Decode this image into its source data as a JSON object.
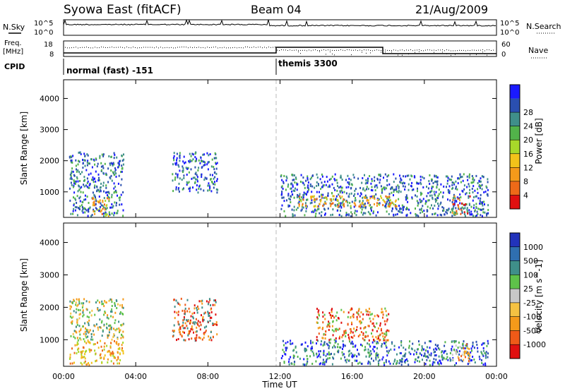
{
  "header": {
    "station": "Syowa East (fitACF)",
    "beam": "Beam 04",
    "date": "21/Aug/2009"
  },
  "status_panel": {
    "left_labels": {
      "nsky": "N.Sky",
      "freq": "Freq.",
      "freq_unit": "[MHz]",
      "cpid": "CPID"
    },
    "right_labels": {
      "nsearch": "N.Search",
      "nave": "Nave"
    },
    "nsky_ticks": [
      "10^5",
      "10^0"
    ],
    "freq_ticks": [
      "18",
      "8"
    ],
    "nsearch_ticks": [
      "10^5",
      "10^0"
    ],
    "nave_ticks": [
      "60",
      "0"
    ],
    "cpid_segments": [
      {
        "label": "normal (fast) -151",
        "start_hour": 0,
        "end_hour": 12
      },
      {
        "label": "themis 3300",
        "start_hour": 12,
        "end_hour": 24
      }
    ]
  },
  "chart_data": [
    {
      "type": "heatmap",
      "name": "power",
      "xlabel": "",
      "ylabel": "Slant Range [km]",
      "xlim": [
        0,
        24
      ],
      "ylim": [
        180,
        4600
      ],
      "yticks": [
        1000,
        2000,
        3000,
        4000
      ],
      "colorbar": {
        "label": "Power [dB]",
        "ticks": [
          "4",
          "8",
          "12",
          "16",
          "20",
          "24",
          "28"
        ],
        "colors": [
          "#1a1aff",
          "#2a4fb0",
          "#3f8f8a",
          "#52b34a",
          "#a8d82a",
          "#f2c21a",
          "#f59a1a",
          "#ee6a18",
          "#e01010"
        ]
      },
      "regions": [
        {
          "x": [
            0.3,
            3.3
          ],
          "y": [
            250,
            2300
          ],
          "dominant": "blue-green"
        },
        {
          "x": [
            1.5,
            2.5
          ],
          "y": [
            250,
            900
          ],
          "dominant": "orange-yellow"
        },
        {
          "x": [
            6.0,
            8.5
          ],
          "y": [
            1000,
            2300
          ],
          "dominant": "green-blue"
        },
        {
          "x": [
            12.0,
            23.5
          ],
          "y": [
            250,
            1600
          ],
          "dominant": "blue-green"
        },
        {
          "x": [
            13.0,
            18.5
          ],
          "y": [
            550,
            900
          ],
          "dominant": "orange-yellow"
        },
        {
          "x": [
            21.5,
            22.5
          ],
          "y": [
            300,
            900
          ],
          "dominant": "red-orange"
        }
      ]
    },
    {
      "type": "heatmap",
      "name": "velocity",
      "xlabel": "Time UT",
      "ylabel": "Slant Range [km]",
      "xlim": [
        0,
        24
      ],
      "ylim": [
        180,
        4600
      ],
      "xticks": [
        "00:00",
        "04:00",
        "08:00",
        "12:00",
        "16:00",
        "20:00",
        "00:00"
      ],
      "yticks": [
        1000,
        2000,
        3000,
        4000
      ],
      "colorbar": {
        "label": "Velocity [m s^-1]",
        "ticks": [
          "1000",
          "500",
          "100",
          "25",
          "-25",
          "-100",
          "-500",
          "-1000"
        ],
        "colors": [
          "#2233bb",
          "#2f6fb0",
          "#3f8f8a",
          "#5ec24a",
          "#c8c8c8",
          "#f5c242",
          "#f59a1a",
          "#ee5a18",
          "#e01010"
        ]
      },
      "regions": [
        {
          "x": [
            0.3,
            3.3
          ],
          "y": [
            250,
            1000
          ],
          "dominant": "orange-yellow"
        },
        {
          "x": [
            0.3,
            3.3
          ],
          "y": [
            1000,
            2300
          ],
          "dominant": "green-orange"
        },
        {
          "x": [
            6.0,
            8.5
          ],
          "y": [
            1000,
            2300
          ],
          "dominant": "red-orange"
        },
        {
          "x": [
            12.0,
            23.5
          ],
          "y": [
            250,
            1000
          ],
          "dominant": "green-blue"
        },
        {
          "x": [
            14.0,
            18.0
          ],
          "y": [
            1000,
            2000
          ],
          "dominant": "orange-red"
        },
        {
          "x": [
            21.5,
            22.5
          ],
          "y": [
            300,
            900
          ],
          "dominant": "orange"
        }
      ]
    }
  ]
}
